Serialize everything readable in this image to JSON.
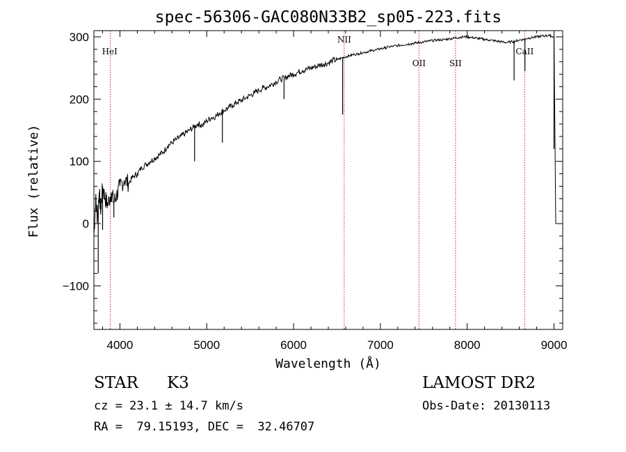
{
  "chart_data": {
    "type": "line",
    "title": "spec-56306-GAC080N33B2_sp05-223.fits",
    "xlabel": "Wavelength (Å)",
    "ylabel": "Flux (relative)",
    "xlim": [
      3700,
      9100
    ],
    "ylim": [
      -170,
      310
    ],
    "xticks": [
      4000,
      5000,
      6000,
      7000,
      8000,
      9000
    ],
    "yticks": [
      -100,
      0,
      100,
      200,
      300
    ],
    "grid": false,
    "series": [
      {
        "x": [
          3700,
          3720,
          3740,
          3760,
          3780,
          3800,
          3830,
          3860,
          3900,
          3930,
          3960,
          4000,
          4050,
          4100,
          4150,
          4200,
          4250,
          4300,
          4350,
          4400,
          4450,
          4500,
          4550,
          4600,
          4650,
          4700,
          4750,
          4800,
          4850,
          4900,
          4950,
          5000,
          5050,
          5100,
          5150,
          5200,
          5250,
          5300,
          5350,
          5400,
          5450,
          5500,
          5550,
          5600,
          5650,
          5700,
          5750,
          5800,
          5850,
          5900,
          5950,
          6000,
          6050,
          6100,
          6150,
          6200,
          6250,
          6300,
          6350,
          6400,
          6450,
          6500,
          6550,
          6600,
          6650,
          6700,
          6750,
          6800,
          6850,
          6900,
          6950,
          7000,
          7050,
          7100,
          7150,
          7200,
          7250,
          7300,
          7350,
          7400,
          7450,
          7500,
          7550,
          7600,
          7650,
          7700,
          7750,
          7800,
          7850,
          7900,
          7950,
          8000,
          8050,
          8100,
          8150,
          8200,
          8250,
          8300,
          8350,
          8400,
          8450,
          8500,
          8550,
          8600,
          8650,
          8700,
          8750,
          8800,
          8850,
          8900,
          8950,
          9000,
          9020
        ],
        "y": [
          -20,
          40,
          10,
          50,
          20,
          60,
          40,
          30,
          50,
          35,
          45,
          60,
          70,
          65,
          75,
          80,
          90,
          95,
          100,
          105,
          110,
          115,
          125,
          130,
          135,
          140,
          145,
          150,
          155,
          160,
          158,
          165,
          170,
          172,
          178,
          182,
          186,
          190,
          195,
          198,
          202,
          206,
          210,
          214,
          218,
          220,
          224,
          228,
          232,
          234,
          238,
          240,
          243,
          246,
          248,
          250,
          252,
          255,
          256,
          258,
          262,
          263,
          266,
          268,
          270,
          272,
          273,
          275,
          276,
          278,
          279,
          281,
          282,
          284,
          285,
          286,
          287,
          288,
          289,
          290,
          291,
          292,
          293,
          294,
          295,
          295,
          296,
          297,
          298,
          299,
          300,
          300,
          299,
          298,
          297,
          296,
          295,
          294,
          293,
          292,
          291,
          292,
          293,
          295,
          296,
          298,
          299,
          300,
          301,
          302,
          302,
          300,
          0
        ]
      }
    ],
    "absorption_dips": [
      {
        "x": 3750,
        "y": -80
      },
      {
        "x": 3800,
        "y": -10
      },
      {
        "x": 3930,
        "y": 10
      },
      {
        "x": 4860,
        "y": 100
      },
      {
        "x": 5180,
        "y": 130
      },
      {
        "x": 5890,
        "y": 200
      },
      {
        "x": 6565,
        "y": 175
      },
      {
        "x": 8540,
        "y": 230
      },
      {
        "x": 8665,
        "y": 245
      },
      {
        "x": 9000,
        "y": 120
      }
    ],
    "lines": [
      {
        "label": "HeI",
        "x": 3889
      },
      {
        "label": "NII",
        "x": 6583
      },
      {
        "label": "OII",
        "x": 7445
      },
      {
        "label": "SII",
        "x": 7865
      },
      {
        "label": "CaII",
        "x": 8662
      }
    ]
  },
  "info": {
    "object_class": "STAR",
    "subclass": "K3",
    "survey": "LAMOST DR2",
    "redshift": "cz = 23.1 ± 14.7 km/s",
    "obs_date": "Obs-Date: 20130113",
    "coordinates": "RA =  79.15193, DEC =  32.46707"
  }
}
